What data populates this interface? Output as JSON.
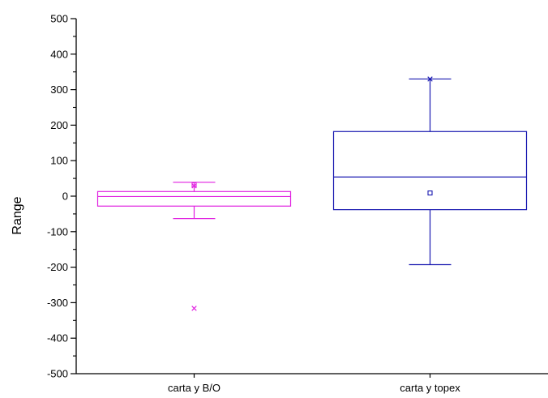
{
  "chart_data": {
    "type": "box",
    "title": "",
    "xlabel": "",
    "ylabel": "Range",
    "ylim": [
      -500,
      500
    ],
    "yticks": [
      -500,
      -400,
      -300,
      -200,
      -100,
      0,
      100,
      200,
      300,
      400,
      500
    ],
    "yticks_labels": [
      "-500",
      "-400",
      "-300",
      "-200",
      "-100",
      "0",
      "100",
      "200",
      "300",
      "400",
      "500"
    ],
    "categories": [
      "carta y B/O",
      "carta y topex"
    ],
    "grid": false,
    "legend": "none",
    "series": [
      {
        "category": "carta y B/O",
        "color": "#e020e0",
        "whisker_low": -63,
        "q1": -28,
        "median": -1,
        "q3": 13,
        "whisker_high": 39,
        "mean": 32,
        "outliers": [
          -316
        ],
        "max_marker": 29
      },
      {
        "category": "carta y topex",
        "color": "#1818b0",
        "whisker_low": -193,
        "q1": -38,
        "median": 54,
        "q3": 182,
        "whisker_high": 330,
        "mean": 9,
        "outliers": [],
        "max_marker": 330
      }
    ]
  }
}
